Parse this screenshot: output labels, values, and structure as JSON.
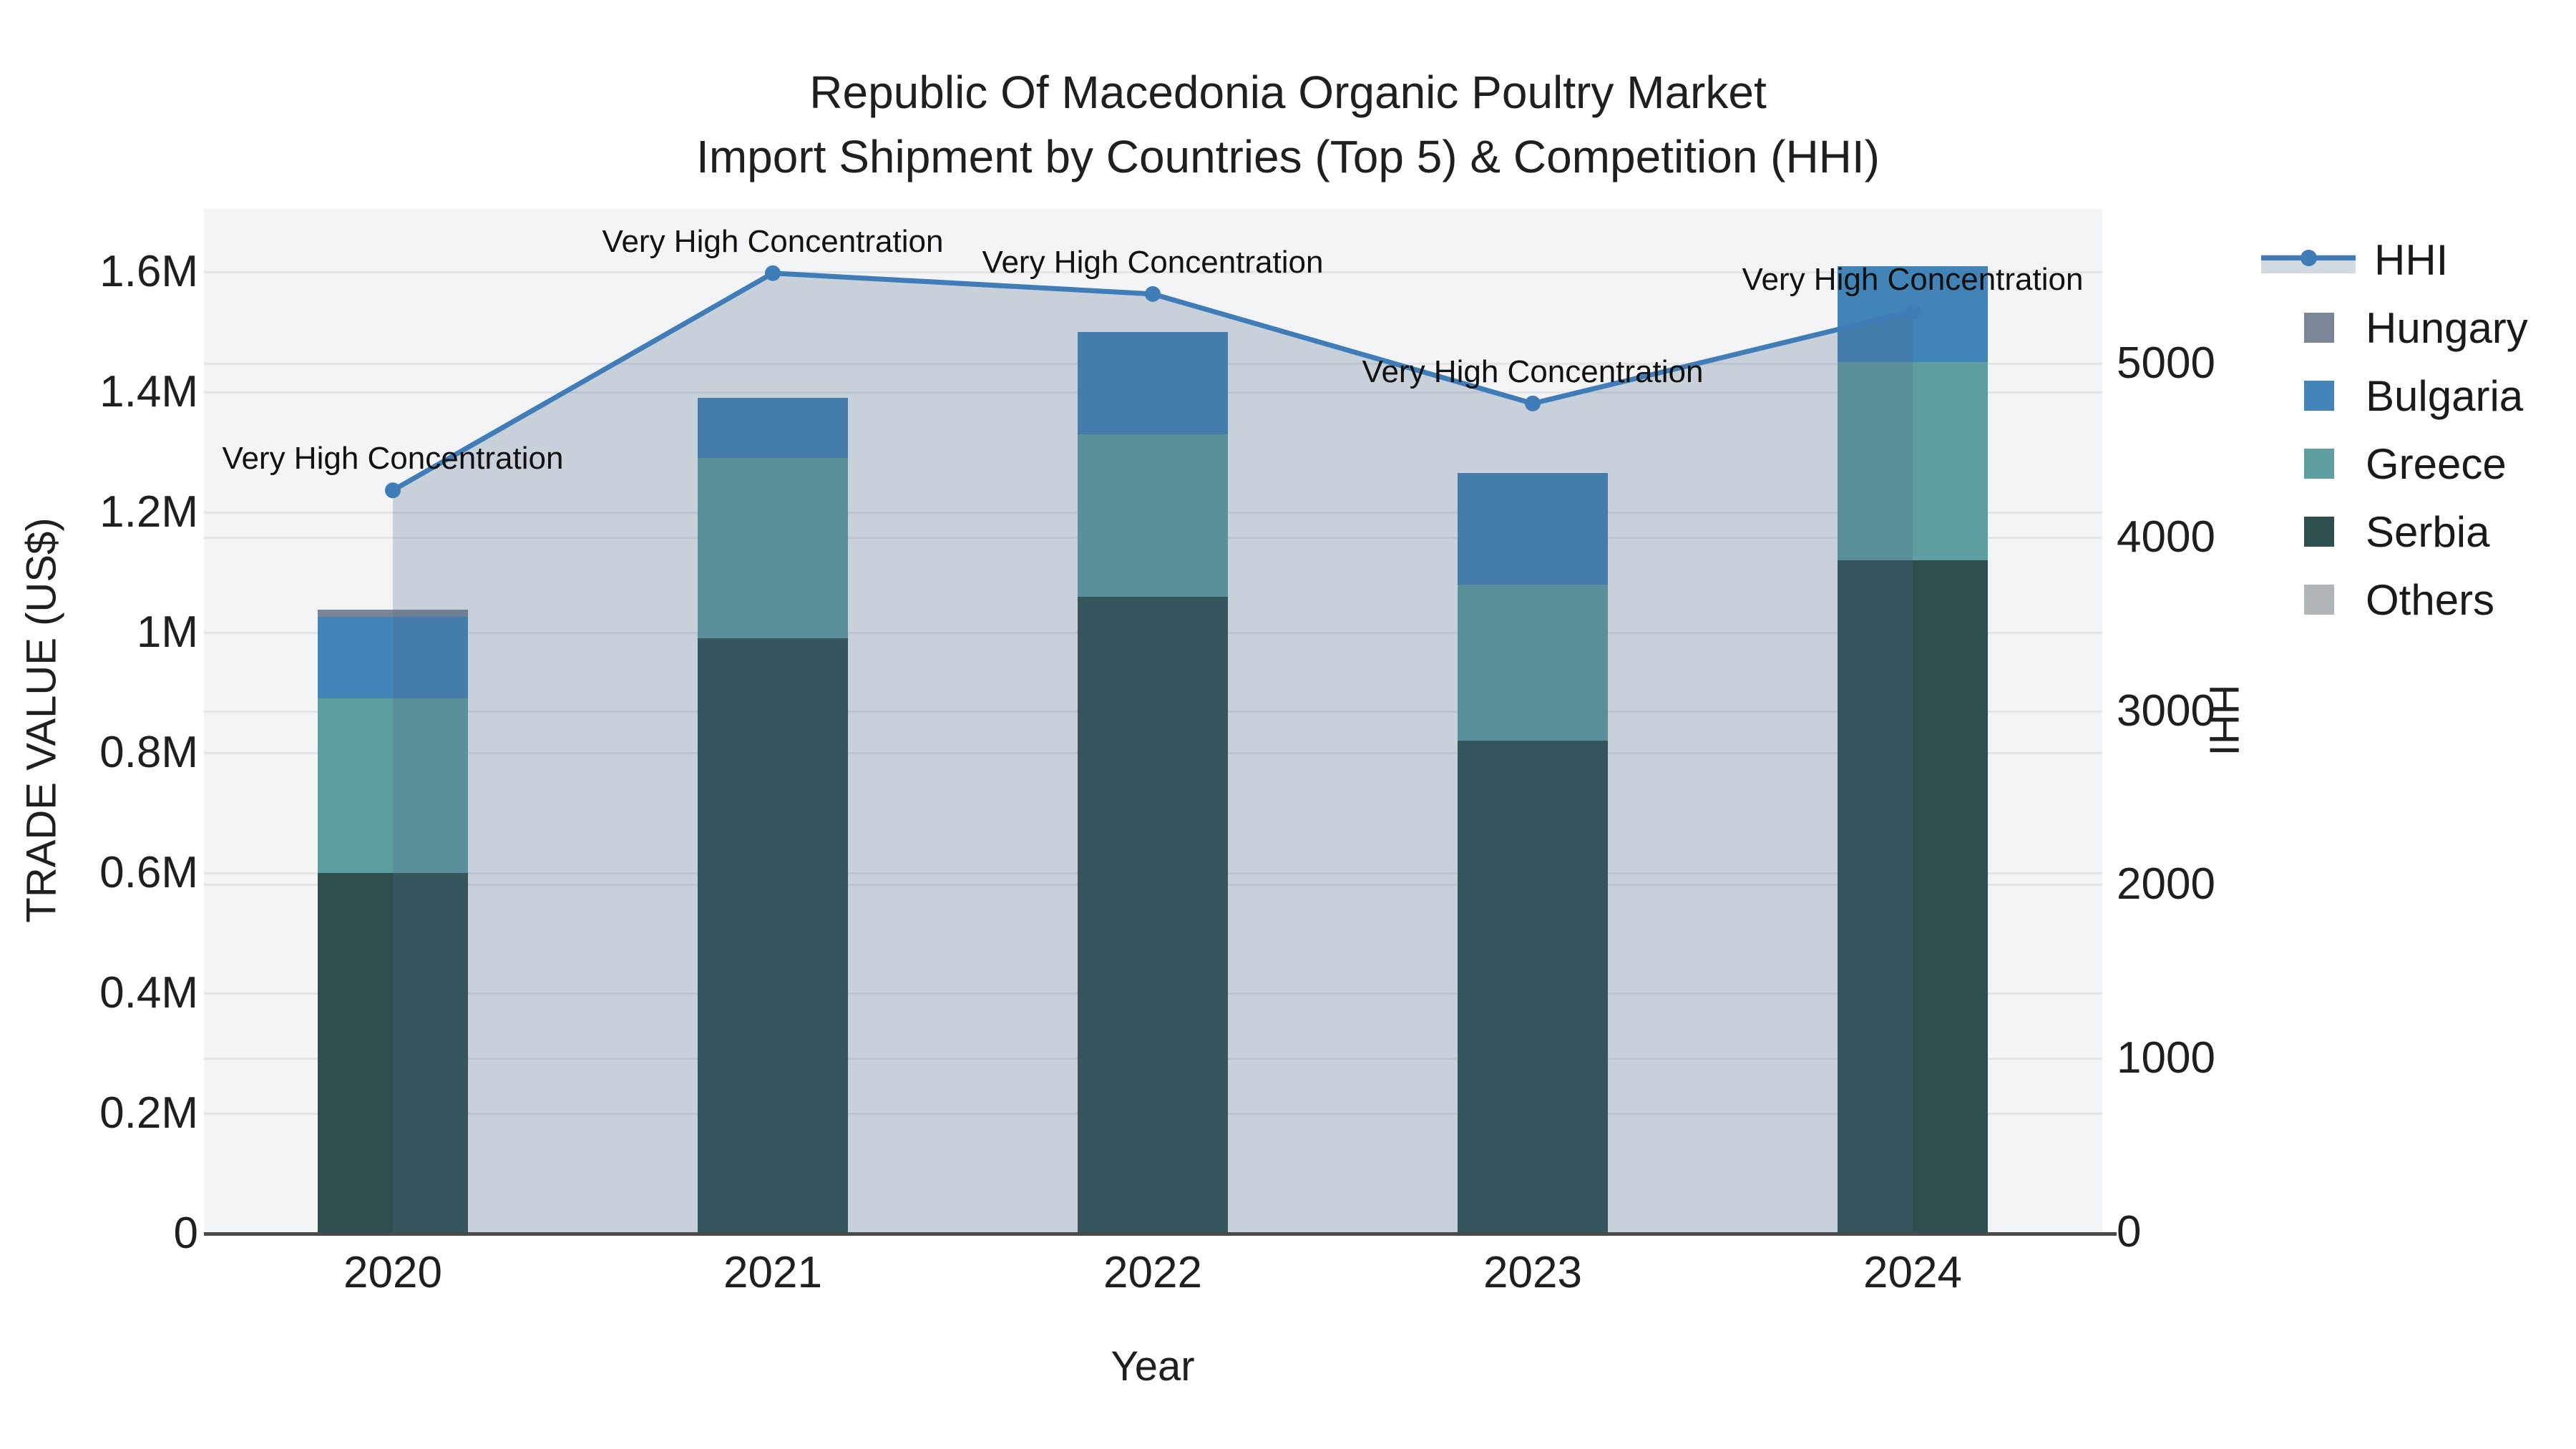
{
  "title": {
    "line1": "Republic Of Macedonia Organic Poultry Market",
    "line2": "Import Shipment by Countries (Top 5) & Competition (HHI)"
  },
  "axes": {
    "x": {
      "title": "Year",
      "categories": [
        "2020",
        "2021",
        "2022",
        "2023",
        "2024"
      ]
    },
    "y_left": {
      "title": "TRADE VALUE (US$)",
      "tick_labels": [
        "0",
        "0.2M",
        "0.4M",
        "0.6M",
        "0.8M",
        "1M",
        "1.2M",
        "1.4M",
        "1.6M"
      ],
      "tick_values": [
        0,
        200000,
        400000,
        600000,
        800000,
        1000000,
        1200000,
        1400000,
        1600000
      ]
    },
    "y_right": {
      "title": "HHI",
      "tick_labels": [
        "0",
        "1000",
        "2000",
        "3000",
        "4000",
        "5000"
      ],
      "tick_values": [
        0,
        1000,
        2000,
        3000,
        4000,
        5000
      ]
    }
  },
  "legend": {
    "items": [
      {
        "label": "HHI",
        "type": "line",
        "color": "#407cb8"
      },
      {
        "label": "Hungary",
        "type": "swatch",
        "color": "#7a8696"
      },
      {
        "label": "Bulgaria",
        "type": "swatch",
        "color": "#4283b8"
      },
      {
        "label": "Greece",
        "type": "swatch",
        "color": "#5f9ea0"
      },
      {
        "label": "Serbia",
        "type": "swatch",
        "color": "#2f4f4e"
      },
      {
        "label": "Others",
        "type": "swatch",
        "color": "#b0b5b8"
      }
    ]
  },
  "chart_data": {
    "type": "bar",
    "subtype": "stacked-bars-with-line-area-overlay",
    "title": "Republic Of Macedonia Organic Poultry Market — Import Shipment by Countries (Top 5) & Competition (HHI)",
    "xlabel": "Year",
    "ylabel": "TRADE VALUE (US$)",
    "ylabel_right": "HHI",
    "ylim_left": [
      0,
      1700000
    ],
    "ylim_right": [
      0,
      5900
    ],
    "grid": true,
    "legend_position": "right",
    "categories": [
      "2020",
      "2021",
      "2022",
      "2023",
      "2024"
    ],
    "series": [
      {
        "name": "Serbia",
        "type": "bar",
        "stack_index": 0,
        "color": "#2f4f4e",
        "values": [
          600000,
          990000,
          1060000,
          820000,
          1120000
        ]
      },
      {
        "name": "Greece",
        "type": "bar",
        "stack_index": 1,
        "color": "#5f9ea0",
        "values": [
          290000,
          300000,
          270000,
          260000,
          330000
        ]
      },
      {
        "name": "Bulgaria",
        "type": "bar",
        "stack_index": 2,
        "color": "#4283b8",
        "values": [
          136000,
          100000,
          170000,
          185000,
          160000
        ]
      },
      {
        "name": "Hungary",
        "type": "bar",
        "stack_index": 3,
        "color": "#7a8696",
        "values": [
          12000,
          0,
          0,
          0,
          0
        ]
      },
      {
        "name": "Others",
        "type": "bar",
        "stack_index": 4,
        "color": "#b0b5b8",
        "values": [
          0,
          0,
          0,
          0,
          0
        ]
      },
      {
        "name": "HHI",
        "type": "line-area",
        "color": "#407cb8",
        "fill_color": "rgba(79,105,140,0.26)",
        "values": [
          4270,
          5520,
          5400,
          4770,
          5300
        ]
      }
    ],
    "annotations": [
      {
        "text": "Very High Concentration",
        "category": "2020",
        "hhi": 4270
      },
      {
        "text": "Very High Concentration",
        "category": "2021",
        "hhi": 5520
      },
      {
        "text": "Very High Concentration",
        "category": "2022",
        "hhi": 5400
      },
      {
        "text": "Very High Concentration",
        "category": "2023",
        "hhi": 4770
      },
      {
        "text": "Very High Concentration",
        "category": "2024",
        "hhi": 5300
      }
    ]
  },
  "colors": {
    "plot_background": "#f3f4f5",
    "gridline": "#e3e5e8",
    "axis_line": "#4a4a4a",
    "text": "#1a1a1a",
    "hhi_line": "#407cb8",
    "hhi_fill": "rgba(79,105,140,0.26)"
  }
}
